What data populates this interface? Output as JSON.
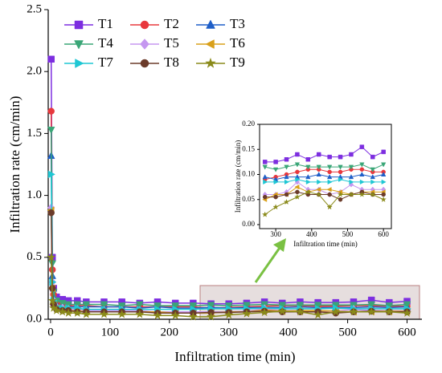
{
  "chart_data": [
    {
      "type": "line",
      "xlabel": "Infiltration time (min)",
      "ylabel": "Infiltration rate (cm/min)",
      "x": [
        1,
        3,
        5,
        10,
        20,
        30,
        45,
        60,
        90,
        120,
        150,
        180,
        210,
        240,
        270,
        300,
        330,
        360,
        390,
        420,
        450,
        480,
        510,
        540,
        570,
        600
      ],
      "xlim": [
        -4,
        625
      ],
      "xticks": [
        0,
        100,
        200,
        300,
        400,
        500,
        600
      ],
      "ylim": [
        0,
        2.5
      ],
      "yticks": [
        {
          "value": 0,
          "label": "0.0"
        },
        0.5,
        {
          "value": 1,
          "label": "1.0"
        },
        1.5,
        {
          "value": 2,
          "label": "2.0"
        },
        2.5
      ],
      "legend": "upper left",
      "series": [
        {
          "name": "T1",
          "color": "#7d2ee0",
          "marker": "square",
          "values": [
            2.1,
            0.5,
            0.25,
            0.18,
            0.16,
            0.15,
            0.15,
            0.14,
            0.14,
            0.14,
            0.13,
            0.14,
            0.13,
            0.13,
            0.125,
            0.125,
            0.13,
            0.14,
            0.13,
            0.14,
            0.135,
            0.135,
            0.14,
            0.155,
            0.135,
            0.145
          ]
        },
        {
          "name": "T2",
          "color": "#e8383d",
          "marker": "circle",
          "values": [
            1.68,
            0.4,
            0.2,
            0.13,
            0.12,
            0.11,
            0.11,
            0.11,
            0.1,
            0.1,
            0.1,
            0.1,
            0.1,
            0.1,
            0.09,
            0.095,
            0.1,
            0.105,
            0.11,
            0.11,
            0.105,
            0.105,
            0.11,
            0.11,
            0.105,
            0.105
          ]
        },
        {
          "name": "T3",
          "color": "#1f5fc8",
          "marker": "triangle-up",
          "values": [
            1.32,
            0.35,
            0.18,
            0.12,
            0.11,
            0.1,
            0.1,
            0.1,
            0.1,
            0.1,
            0.09,
            0.1,
            0.09,
            0.09,
            0.095,
            0.09,
            0.095,
            0.095,
            0.095,
            0.1,
            0.095,
            0.095,
            0.095,
            0.1,
            0.095,
            0.1
          ]
        },
        {
          "name": "T4",
          "color": "#3aa677",
          "marker": "triangle-down",
          "values": [
            1.53,
            0.45,
            0.22,
            0.15,
            0.13,
            0.12,
            0.12,
            0.12,
            0.12,
            0.11,
            0.12,
            0.11,
            0.11,
            0.11,
            0.115,
            0.11,
            0.115,
            0.12,
            0.115,
            0.115,
            0.115,
            0.115,
            0.115,
            0.12,
            0.11,
            0.12
          ]
        },
        {
          "name": "T5",
          "color": "#c597f0",
          "marker": "diamond",
          "values": [
            0.9,
            0.3,
            0.15,
            0.1,
            0.09,
            0.08,
            0.08,
            0.07,
            0.07,
            0.07,
            0.07,
            0.06,
            0.06,
            0.06,
            0.06,
            0.06,
            0.065,
            0.085,
            0.07,
            0.07,
            0.06,
            0.065,
            0.08,
            0.07,
            0.07,
            0.07
          ]
        },
        {
          "name": "T6",
          "color": "#d9a01a",
          "marker": "triangle-left",
          "values": [
            0.88,
            0.25,
            0.12,
            0.09,
            0.08,
            0.07,
            0.07,
            0.06,
            0.06,
            0.06,
            0.06,
            0.06,
            0.05,
            0.05,
            0.05,
            0.06,
            0.06,
            0.075,
            0.065,
            0.07,
            0.07,
            0.065,
            0.06,
            0.065,
            0.065,
            0.065
          ]
        },
        {
          "name": "T7",
          "color": "#1fc7d4",
          "marker": "triangle-right",
          "values": [
            1.17,
            0.3,
            0.15,
            0.1,
            0.09,
            0.09,
            0.09,
            0.08,
            0.08,
            0.08,
            0.08,
            0.08,
            0.08,
            0.08,
            0.085,
            0.085,
            0.085,
            0.09,
            0.085,
            0.085,
            0.085,
            0.09,
            0.085,
            0.085,
            0.085,
            0.085
          ]
        },
        {
          "name": "T8",
          "color": "#6b3b2a",
          "marker": "circle",
          "values": [
            0.86,
            0.25,
            0.12,
            0.08,
            0.07,
            0.07,
            0.06,
            0.06,
            0.06,
            0.06,
            0.06,
            0.05,
            0.05,
            0.05,
            0.055,
            0.055,
            0.06,
            0.065,
            0.06,
            0.06,
            0.06,
            0.05,
            0.06,
            0.065,
            0.06,
            0.06
          ]
        },
        {
          "name": "T9",
          "color": "#8a8a1a",
          "marker": "star",
          "values": [
            0.5,
            0.15,
            0.09,
            0.07,
            0.06,
            0.05,
            0.05,
            0.04,
            0.04,
            0.04,
            0.04,
            0.03,
            0.03,
            0.02,
            0.02,
            0.035,
            0.045,
            0.055,
            0.065,
            0.06,
            0.035,
            0.06,
            0.06,
            0.06,
            0.06,
            0.05
          ]
        }
      ]
    },
    {
      "type": "line",
      "xlabel": "Infiltration time (min)",
      "ylabel": "Infiltration rate (cm/min)",
      "x": [
        270,
        300,
        330,
        360,
        390,
        420,
        450,
        480,
        510,
        540,
        570,
        600
      ],
      "xlim": [
        255,
        622
      ],
      "xticks": [
        300,
        400,
        500,
        600
      ],
      "ylim": [
        -0.008,
        0.2
      ],
      "yticks": [
        {
          "value": 0,
          "label": "0.00"
        },
        {
          "value": 0.05,
          "label": "0.05"
        },
        {
          "value": 0.1,
          "label": "0.10"
        },
        {
          "value": 0.15,
          "label": "0.15"
        },
        {
          "value": 0.2,
          "label": "0.20"
        }
      ],
      "series": [
        {
          "color": "#7d2ee0",
          "marker": "square",
          "values": [
            0.125,
            0.125,
            0.13,
            0.14,
            0.13,
            0.14,
            0.135,
            0.135,
            0.14,
            0.155,
            0.135,
            0.145
          ]
        },
        {
          "color": "#e8383d",
          "marker": "circle",
          "values": [
            0.09,
            0.095,
            0.1,
            0.105,
            0.11,
            0.11,
            0.105,
            0.105,
            0.11,
            0.11,
            0.105,
            0.105
          ]
        },
        {
          "color": "#1f5fc8",
          "marker": "triangle-up",
          "values": [
            0.095,
            0.09,
            0.095,
            0.095,
            0.095,
            0.1,
            0.095,
            0.095,
            0.095,
            0.1,
            0.095,
            0.1
          ]
        },
        {
          "color": "#3aa677",
          "marker": "triangle-down",
          "values": [
            0.115,
            0.11,
            0.115,
            0.12,
            0.115,
            0.115,
            0.115,
            0.115,
            0.115,
            0.12,
            0.11,
            0.12
          ]
        },
        {
          "color": "#c597f0",
          "marker": "diamond",
          "values": [
            0.06,
            0.06,
            0.065,
            0.085,
            0.07,
            0.07,
            0.06,
            0.065,
            0.08,
            0.07,
            0.07,
            0.07
          ]
        },
        {
          "color": "#d9a01a",
          "marker": "triangle-left",
          "values": [
            0.05,
            0.06,
            0.06,
            0.075,
            0.065,
            0.07,
            0.07,
            0.065,
            0.06,
            0.065,
            0.065,
            0.065
          ]
        },
        {
          "color": "#1fc7d4",
          "marker": "triangle-right",
          "values": [
            0.085,
            0.085,
            0.085,
            0.09,
            0.085,
            0.085,
            0.085,
            0.09,
            0.085,
            0.085,
            0.085,
            0.085
          ]
        },
        {
          "color": "#6b3b2a",
          "marker": "circle",
          "values": [
            0.055,
            0.055,
            0.06,
            0.065,
            0.06,
            0.06,
            0.06,
            0.05,
            0.06,
            0.065,
            0.06,
            0.06
          ]
        },
        {
          "color": "#8a8a1a",
          "marker": "star",
          "values": [
            0.02,
            0.035,
            0.045,
            0.055,
            0.065,
            0.06,
            0.035,
            0.06,
            0.06,
            0.06,
            0.06,
            0.05
          ]
        }
      ]
    }
  ]
}
